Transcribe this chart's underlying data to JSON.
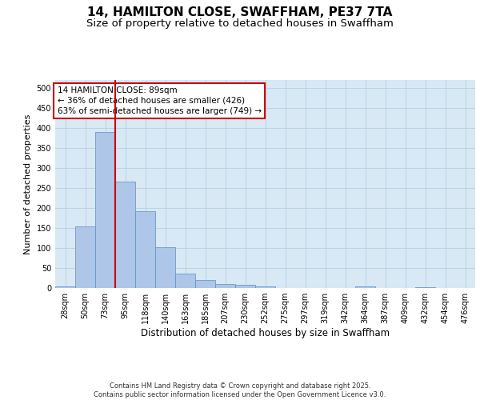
{
  "title_line1": "14, HAMILTON CLOSE, SWAFFHAM, PE37 7TA",
  "title_line2": "Size of property relative to detached houses in Swaffham",
  "xlabel": "Distribution of detached houses by size in Swaffham",
  "ylabel": "Number of detached properties",
  "categories": [
    "28sqm",
    "50sqm",
    "73sqm",
    "95sqm",
    "118sqm",
    "140sqm",
    "163sqm",
    "185sqm",
    "207sqm",
    "230sqm",
    "252sqm",
    "275sqm",
    "297sqm",
    "319sqm",
    "342sqm",
    "364sqm",
    "387sqm",
    "409sqm",
    "432sqm",
    "454sqm",
    "476sqm"
  ],
  "values": [
    5,
    155,
    390,
    267,
    192,
    102,
    36,
    20,
    10,
    9,
    4,
    1,
    0,
    0,
    0,
    4,
    0,
    0,
    3,
    0,
    0
  ],
  "bar_color": "#aec6e8",
  "bar_edge_color": "#5a8fc2",
  "vline_x_index": 2.5,
  "vline_color": "#cc0000",
  "annotation_text": "14 HAMILTON CLOSE: 89sqm\n← 36% of detached houses are smaller (426)\n63% of semi-detached houses are larger (749) →",
  "annotation_box_color": "#ffffff",
  "annotation_box_edge_color": "#cc0000",
  "annotation_fontsize": 7.5,
  "ylim": [
    0,
    520
  ],
  "yticks": [
    0,
    50,
    100,
    150,
    200,
    250,
    300,
    350,
    400,
    450,
    500
  ],
  "grid_color": "#b8cfe0",
  "background_color": "#d8e8f4",
  "footer_text": "Contains HM Land Registry data © Crown copyright and database right 2025.\nContains public sector information licensed under the Open Government Licence v3.0.",
  "title_fontsize": 11,
  "subtitle_fontsize": 9.5,
  "xlabel_fontsize": 8.5,
  "ylabel_fontsize": 8,
  "tick_fontsize": 7,
  "footer_fontsize": 6
}
